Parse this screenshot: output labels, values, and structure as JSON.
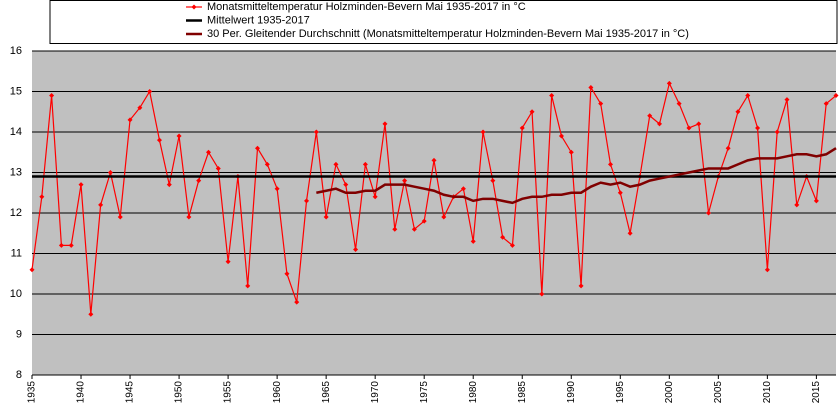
{
  "chart_data": {
    "type": "line",
    "x": [
      1935,
      1936,
      1937,
      1938,
      1939,
      1940,
      1941,
      1942,
      1943,
      1944,
      1945,
      1946,
      1947,
      1948,
      1949,
      1950,
      1951,
      1952,
      1953,
      1954,
      1955,
      1956,
      1957,
      1958,
      1959,
      1960,
      1961,
      1962,
      1963,
      1964,
      1965,
      1966,
      1967,
      1968,
      1969,
      1970,
      1971,
      1972,
      1973,
      1974,
      1975,
      1976,
      1977,
      1978,
      1979,
      1980,
      1981,
      1982,
      1983,
      1984,
      1985,
      1986,
      1987,
      1988,
      1989,
      1990,
      1991,
      1992,
      1993,
      1994,
      1995,
      1996,
      1997,
      1998,
      1999,
      2000,
      2001,
      2002,
      2003,
      2004,
      2005,
      2006,
      2007,
      2008,
      2009,
      2010,
      2011,
      2012,
      2013,
      2014,
      2015,
      2016,
      2017
    ],
    "series": [
      {
        "name": "Monatsmitteltemperatur Holzminden-Bevern Mai 1935-2017 in °C",
        "color": "#ff0000",
        "values": [
          10.6,
          12.4,
          14.9,
          11.2,
          11.2,
          12.7,
          9.5,
          12.2,
          13.0,
          11.9,
          14.3,
          14.6,
          15.0,
          13.8,
          12.7,
          13.9,
          11.9,
          12.8,
          13.5,
          13.1,
          10.8,
          12.9,
          10.2,
          13.6,
          13.2,
          12.6,
          10.5,
          9.8,
          12.3,
          14.0,
          11.9,
          13.2,
          12.7,
          11.1,
          13.2,
          12.4,
          14.2,
          11.6,
          12.8,
          11.6,
          11.8,
          13.3,
          11.9,
          12.4,
          12.6,
          11.3,
          14.0,
          12.8,
          11.4,
          11.2,
          14.1,
          14.5,
          10.0,
          14.9,
          13.9,
          13.5,
          10.2,
          15.1,
          14.7,
          13.2,
          12.5,
          11.5,
          12.9,
          14.4,
          14.2,
          15.2,
          14.7,
          14.1,
          14.2,
          12.0,
          12.9,
          13.6,
          14.5,
          14.9,
          14.1,
          10.6,
          14.0,
          14.8,
          12.2,
          12.9,
          12.3,
          14.7,
          14.9
        ]
      },
      {
        "name": "Mittelwert 1935-2017",
        "color": "#000000",
        "value": 12.9
      },
      {
        "name": "30 Per. Gleitender Durchschnitt (Monatsmitteltemperatur Holzminden-Bevern Mai 1935-2017 in °C)",
        "color": "#800000",
        "values": [
          null,
          null,
          null,
          null,
          null,
          null,
          null,
          null,
          null,
          null,
          null,
          null,
          null,
          null,
          null,
          null,
          null,
          null,
          null,
          null,
          null,
          null,
          null,
          null,
          null,
          null,
          null,
          null,
          null,
          12.5,
          12.55,
          12.6,
          12.5,
          12.5,
          12.55,
          12.55,
          12.7,
          12.7,
          12.7,
          12.65,
          12.6,
          12.55,
          12.45,
          12.4,
          12.4,
          12.3,
          12.35,
          12.35,
          12.3,
          12.25,
          12.35,
          12.4,
          12.4,
          12.45,
          12.45,
          12.5,
          12.5,
          12.65,
          12.75,
          12.7,
          12.75,
          12.65,
          12.7,
          12.8,
          12.85,
          12.9,
          12.95,
          13.0,
          13.05,
          13.1,
          13.1,
          13.1,
          13.2,
          13.3,
          13.35,
          13.35,
          13.35,
          13.4,
          13.45,
          13.45,
          13.4,
          13.45,
          13.6
        ]
      }
    ],
    "xlim": [
      1935,
      2017
    ],
    "xticks": [
      1935,
      1940,
      1945,
      1950,
      1955,
      1960,
      1965,
      1970,
      1975,
      1980,
      1985,
      1990,
      1995,
      2000,
      2005,
      2010,
      2015
    ],
    "ylim": [
      8,
      16
    ],
    "yticks": [
      8,
      9,
      10,
      11,
      12,
      13,
      14,
      15,
      16
    ],
    "grid": true
  }
}
